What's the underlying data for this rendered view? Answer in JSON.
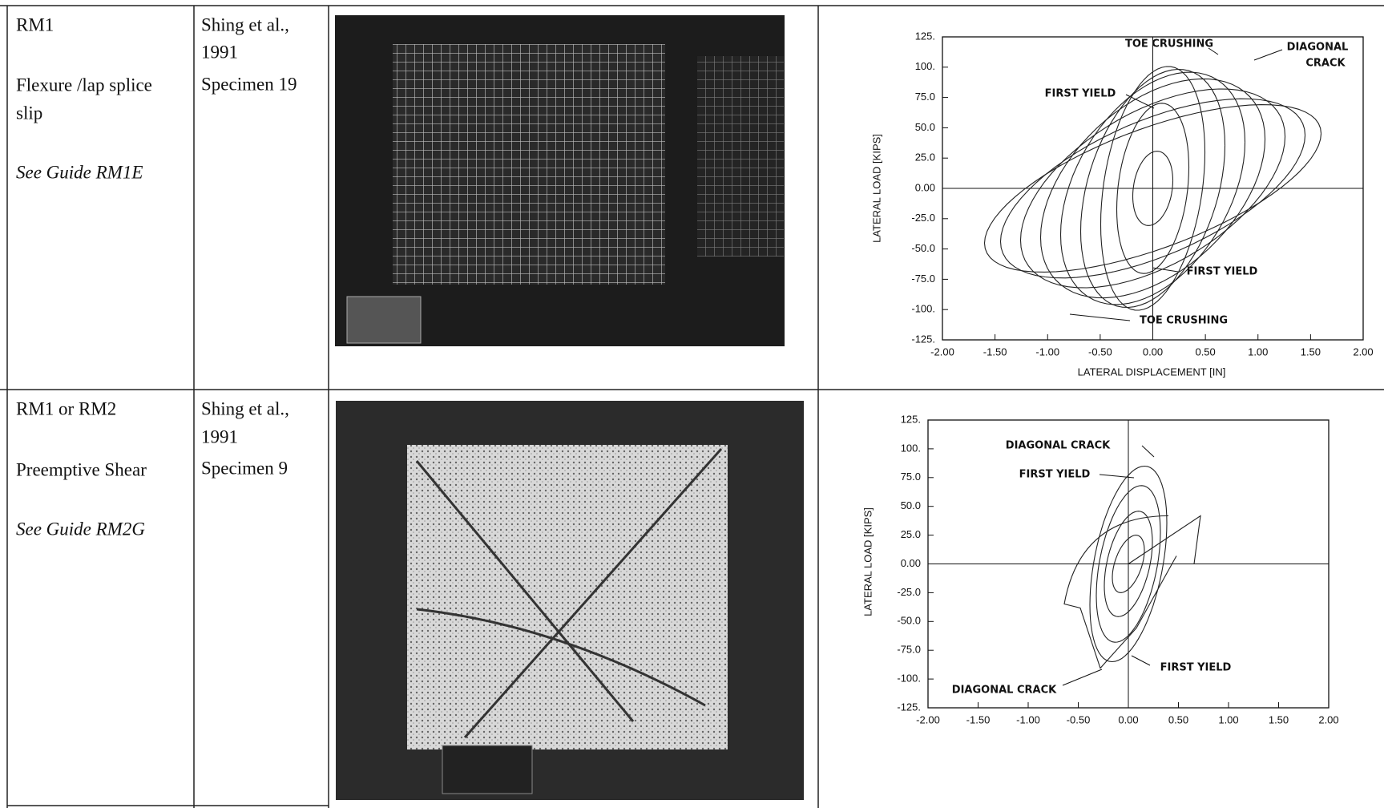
{
  "table": {
    "rows": [
      {
        "system": "RM1",
        "mode": [
          "Flexure /lap splice",
          "slip"
        ],
        "guide": "See Guide RM1E",
        "source": [
          "Shing et al.,",
          "1991",
          "Specimen 19"
        ],
        "chart": {
          "type": "line",
          "ylabel": "LATERAL LOAD [KIPS]",
          "xlabel": "LATERAL DISPLACEMENT [IN]",
          "xlim": [
            -2,
            2
          ],
          "ylim": [
            -125,
            125
          ],
          "xticks": [
            {
              "value": -2,
              "label": "-2.00"
            },
            {
              "value": -1.5,
              "label": "-1.50"
            },
            {
              "value": -1,
              "label": "-1.00"
            },
            {
              "value": -0.5,
              "label": "-0.50"
            },
            {
              "value": 0,
              "label": "0.00"
            },
            {
              "value": 0.5,
              "label": "0.50"
            },
            {
              "value": 1,
              "label": "1.00"
            },
            {
              "value": 1.5,
              "label": "1.50"
            },
            {
              "value": 2,
              "label": "2.00"
            }
          ],
          "yticks": [
            {
              "value": 125,
              "label": "125."
            },
            {
              "value": 100,
              "label": "100."
            },
            {
              "value": 75,
              "label": "75.0"
            },
            {
              "value": 50,
              "label": "50.0"
            },
            {
              "value": 25,
              "label": "25.0"
            },
            {
              "value": 0,
              "label": "0.00"
            },
            {
              "value": -25,
              "label": "-25.0"
            },
            {
              "value": -50,
              "label": "-50.0"
            },
            {
              "value": -75,
              "label": "-75.0"
            },
            {
              "value": -100,
              "label": "-100."
            },
            {
              "value": -125,
              "label": "-125."
            }
          ],
          "annotations": [
            "TOE CRUSHING",
            "DIAGONAL",
            "CRACK",
            "FIRST YIELD",
            "FIRST YIELD",
            "TOE CRUSHING"
          ]
        }
      },
      {
        "system": "RM1 or RM2",
        "mode": [
          "Preemptive Shear"
        ],
        "guide": "See Guide RM2G",
        "source": [
          "Shing et al.,",
          "1991",
          "Specimen 9"
        ],
        "chart": {
          "type": "line",
          "ylabel": "LATERAL LOAD [KIPS]",
          "xlim": [
            -2,
            2
          ],
          "ylim": [
            -125,
            125
          ],
          "xticks": [
            {
              "value": -2,
              "label": "-2.00"
            },
            {
              "value": -1.5,
              "label": "-1.50"
            },
            {
              "value": -1,
              "label": "-1.00"
            },
            {
              "value": -0.5,
              "label": "-0.50"
            },
            {
              "value": 0,
              "label": "0.00"
            },
            {
              "value": 0.5,
              "label": "0.50"
            },
            {
              "value": 1,
              "label": "1.00"
            },
            {
              "value": 1.5,
              "label": "1.50"
            },
            {
              "value": 2,
              "label": "2.00"
            }
          ],
          "yticks": [
            {
              "value": 125,
              "label": "125."
            },
            {
              "value": 100,
              "label": "100."
            },
            {
              "value": 75,
              "label": "75.0"
            },
            {
              "value": 50,
              "label": "50.0"
            },
            {
              "value": 25,
              "label": "25.0"
            },
            {
              "value": 0,
              "label": "0.00"
            },
            {
              "value": -25,
              "label": "-25.0"
            },
            {
              "value": -50,
              "label": "-50.0"
            },
            {
              "value": -75,
              "label": "-75.0"
            },
            {
              "value": -100,
              "label": "-100."
            },
            {
              "value": -125,
              "label": "-125."
            }
          ],
          "annotations": [
            "DIAGONAL CRACK",
            "FIRST YIELD",
            "FIRST YIELD",
            "DIAGONAL CRACK"
          ]
        }
      }
    ]
  }
}
